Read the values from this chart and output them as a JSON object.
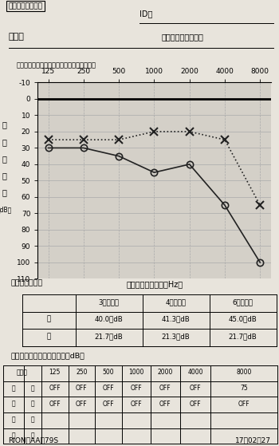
{
  "title_box": "標準純音聴力検査",
  "id_label": "ID：",
  "name_label": "氏　名",
  "age_label": "（　　才）　男　女",
  "bone_label": "骨導検耳：前額　閉鎖（閉鎖効果補正あり）",
  "xlabel": "周　　波　　数　（Hz）",
  "freqs": [
    125,
    250,
    500,
    1000,
    2000,
    4000,
    8000
  ],
  "right_air": [
    30,
    30,
    35,
    45,
    40,
    65,
    100
  ],
  "left_air": [
    25,
    25,
    25,
    20,
    20,
    25,
    65
  ],
  "ylim_min": -10,
  "ylim_max": 110,
  "y_ticks": [
    -10,
    0,
    10,
    20,
    30,
    40,
    50,
    60,
    70,
    80,
    90,
    100,
    110
  ],
  "bg_color": "#e8e4dc",
  "plot_bg": "#d4d0c8",
  "grid_color": "#aaaaaa",
  "line_color": "#222222",
  "avg_title": "平均聴力レベル",
  "avg_headers": [
    "",
    "3　分　法",
    "4　分　法",
    "6　分　法"
  ],
  "avg_right": [
    "右",
    "40.0　dB",
    "41.3　dB",
    "45.0　dB"
  ],
  "avg_left": [
    "左",
    "21.7　dB",
    "21.3　dB",
    "21.7　dB"
  ],
  "mask_title": "マスキングノイズレベル　（dB）",
  "footer_left": "RION　AA－79S",
  "footer_right": "17／02／27"
}
